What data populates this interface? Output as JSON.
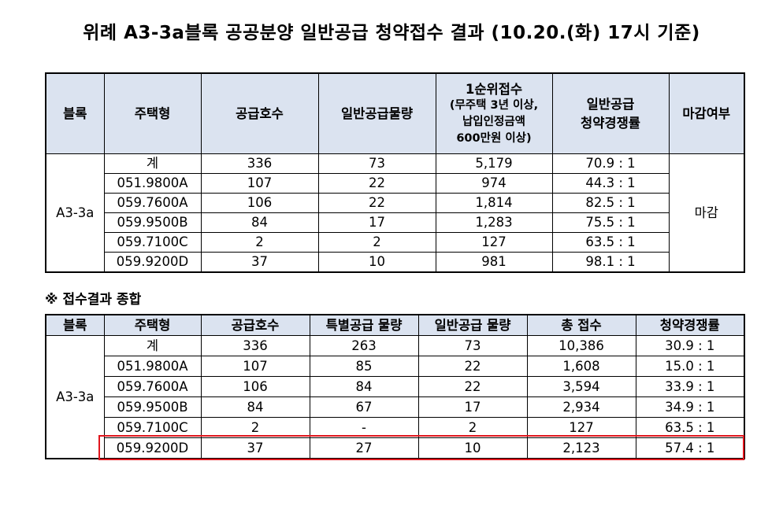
{
  "title": "위례 A3-3a블록 공공분양 일반공급 청약접수 결과 (10.20.(화) 17시 기준)",
  "table1": {
    "headers": {
      "block": "블록",
      "type": "주택형",
      "supply": "공급호수",
      "general_qty": "일반공급물량",
      "first_rank_title": "1순위접수",
      "first_rank_note1": "(무주택 3년 이상,",
      "first_rank_note2": "납입인정금액",
      "first_rank_note3": "600만원 이상)",
      "competition1": "일반공급",
      "competition2": "청약경쟁률",
      "closed": "마감여부"
    },
    "block": "A3-3a",
    "closed_value": "마감",
    "rows": [
      {
        "type": "계",
        "supply": "336",
        "general": "73",
        "applicants": "5,179",
        "ratio": "70.9 : 1"
      },
      {
        "type": "051.9800A",
        "supply": "107",
        "general": "22",
        "applicants": "974",
        "ratio": "44.3 : 1"
      },
      {
        "type": "059.7600A",
        "supply": "106",
        "general": "22",
        "applicants": "1,814",
        "ratio": "82.5 : 1"
      },
      {
        "type": "059.9500B",
        "supply": "84",
        "general": "17",
        "applicants": "1,283",
        "ratio": "75.5 : 1"
      },
      {
        "type": "059.7100C",
        "supply": "2",
        "general": "2",
        "applicants": "127",
        "ratio": "63.5 : 1"
      },
      {
        "type": "059.9200D",
        "supply": "37",
        "general": "10",
        "applicants": "981",
        "ratio": "98.1 : 1"
      }
    ]
  },
  "section_title": "※ 접수결과 종합",
  "table2": {
    "headers": {
      "block": "블록",
      "type": "주택형",
      "supply": "공급호수",
      "special_qty": "특별공급 물량",
      "general_qty": "일반공급 물량",
      "total": "총 접수",
      "ratio": "청약경쟁률"
    },
    "block": "A3-3a",
    "rows": [
      {
        "type": "계",
        "supply": "336",
        "special": "263",
        "general": "73",
        "total": "10,386",
        "ratio": "30.9 : 1"
      },
      {
        "type": "051.9800A",
        "supply": "107",
        "special": "85",
        "general": "22",
        "total": "1,608",
        "ratio": "15.0 : 1"
      },
      {
        "type": "059.7600A",
        "supply": "106",
        "special": "84",
        "general": "22",
        "total": "3,594",
        "ratio": "33.9 : 1"
      },
      {
        "type": "059.9500B",
        "supply": "84",
        "special": "67",
        "general": "17",
        "total": "2,934",
        "ratio": "34.9 : 1"
      },
      {
        "type": "059.7100C",
        "supply": "2",
        "special": "-",
        "general": "2",
        "total": "127",
        "ratio": "63.5 : 1"
      },
      {
        "type": "059.9200D",
        "supply": "37",
        "special": "27",
        "general": "10",
        "total": "2,123",
        "ratio": "57.4 : 1"
      }
    ]
  }
}
